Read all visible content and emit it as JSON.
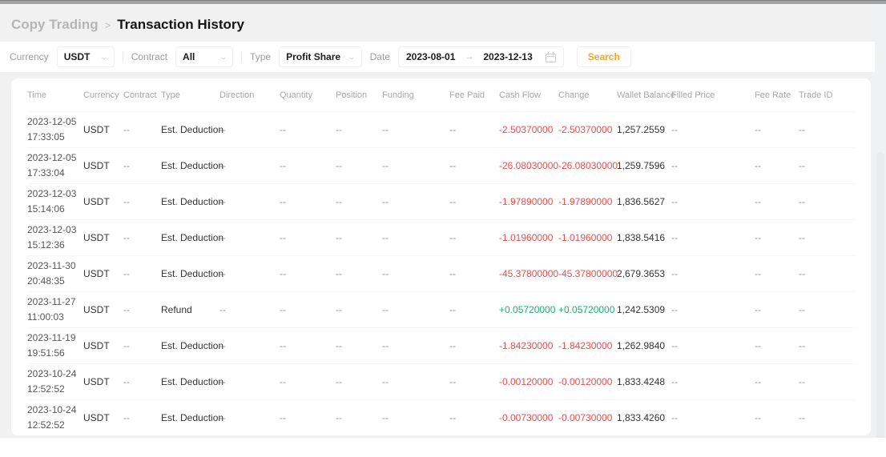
{
  "breadcrumb": {
    "parent": "Copy Trading",
    "separator": ">",
    "current": "Transaction History"
  },
  "filters": {
    "currency": {
      "label": "Currency",
      "value": "USDT"
    },
    "contract": {
      "label": "Contract",
      "value": "All"
    },
    "type": {
      "label": "Type",
      "value": "Profit Share"
    },
    "date": {
      "label": "Date",
      "start": "2023-08-01",
      "arrow": "→",
      "end": "2023-12-13"
    },
    "search_label": "Search"
  },
  "colors": {
    "negative": "#f14a4a",
    "positive": "#1ab470",
    "accent_orange": "#ffa21a"
  },
  "table": {
    "columns": [
      "Time",
      "Currency",
      "Contract",
      "Type",
      "Direction",
      "Quantity",
      "Position",
      "Funding",
      "Fee Paid",
      "Cash Flow",
      "Change",
      "Wallet Balance",
      "Filled Price",
      "Fee Rate",
      "Trade ID"
    ],
    "field_order": [
      "currency",
      "contract",
      "type",
      "direction",
      "quantity",
      "position",
      "funding",
      "fee_paid",
      "cash_flow",
      "change",
      "wallet_balance",
      "filled_price",
      "fee_rate",
      "trade_id"
    ],
    "signed_fields": [
      "cash_flow",
      "change"
    ],
    "rows": [
      {
        "date": "2023-12-05",
        "time": "17:33:05",
        "currency": "USDT",
        "contract": "--",
        "type": "Est. Deduction",
        "direction": "--",
        "quantity": "--",
        "position": "--",
        "funding": "--",
        "fee_paid": "--",
        "cash_flow": "-2.50370000",
        "change": "-2.50370000",
        "wallet_balance": "1,257.2559",
        "filled_price": "--",
        "fee_rate": "--",
        "trade_id": "--"
      },
      {
        "date": "2023-12-05",
        "time": "17:33:04",
        "currency": "USDT",
        "contract": "--",
        "type": "Est. Deduction",
        "direction": "--",
        "quantity": "--",
        "position": "--",
        "funding": "--",
        "fee_paid": "--",
        "cash_flow": "-26.08030000",
        "change": "-26.08030000",
        "wallet_balance": "1,259.7596",
        "filled_price": "--",
        "fee_rate": "--",
        "trade_id": "--"
      },
      {
        "date": "2023-12-03",
        "time": "15:14:06",
        "currency": "USDT",
        "contract": "--",
        "type": "Est. Deduction",
        "direction": "--",
        "quantity": "--",
        "position": "--",
        "funding": "--",
        "fee_paid": "--",
        "cash_flow": "-1.97890000",
        "change": "-1.97890000",
        "wallet_balance": "1,836.5627",
        "filled_price": "--",
        "fee_rate": "--",
        "trade_id": "--"
      },
      {
        "date": "2023-12-03",
        "time": "15:12:36",
        "currency": "USDT",
        "contract": "--",
        "type": "Est. Deduction",
        "direction": "--",
        "quantity": "--",
        "position": "--",
        "funding": "--",
        "fee_paid": "--",
        "cash_flow": "-1.01960000",
        "change": "-1.01960000",
        "wallet_balance": "1,838.5416",
        "filled_price": "--",
        "fee_rate": "--",
        "trade_id": "--"
      },
      {
        "date": "2023-11-30",
        "time": "20:48:35",
        "currency": "USDT",
        "contract": "--",
        "type": "Est. Deduction",
        "direction": "--",
        "quantity": "--",
        "position": "--",
        "funding": "--",
        "fee_paid": "--",
        "cash_flow": "-45.37800000",
        "change": "-45.37800000",
        "wallet_balance": "2,679.3653",
        "filled_price": "--",
        "fee_rate": "--",
        "trade_id": "--"
      },
      {
        "date": "2023-11-27",
        "time": "11:00:03",
        "currency": "USDT",
        "contract": "--",
        "type": "Refund",
        "direction": "--",
        "quantity": "--",
        "position": "--",
        "funding": "--",
        "fee_paid": "--",
        "cash_flow": "+0.05720000",
        "change": "+0.05720000",
        "wallet_balance": "1,242.5309",
        "filled_price": "--",
        "fee_rate": "--",
        "trade_id": "--"
      },
      {
        "date": "2023-11-19",
        "time": "19:51:56",
        "currency": "USDT",
        "contract": "--",
        "type": "Est. Deduction",
        "direction": "--",
        "quantity": "--",
        "position": "--",
        "funding": "--",
        "fee_paid": "--",
        "cash_flow": "-1.84230000",
        "change": "-1.84230000",
        "wallet_balance": "1,262.9840",
        "filled_price": "--",
        "fee_rate": "--",
        "trade_id": "--"
      },
      {
        "date": "2023-10-24",
        "time": "12:52:52",
        "currency": "USDT",
        "contract": "--",
        "type": "Est. Deduction",
        "direction": "--",
        "quantity": "--",
        "position": "--",
        "funding": "--",
        "fee_paid": "--",
        "cash_flow": "-0.00120000",
        "change": "-0.00120000",
        "wallet_balance": "1,833.4248",
        "filled_price": "--",
        "fee_rate": "--",
        "trade_id": "--"
      },
      {
        "date": "2023-10-24",
        "time": "12:52:52",
        "currency": "USDT",
        "contract": "--",
        "type": "Est. Deduction",
        "direction": "--",
        "quantity": "--",
        "position": "--",
        "funding": "--",
        "fee_paid": "--",
        "cash_flow": "-0.00730000",
        "change": "-0.00730000",
        "wallet_balance": "1,833.4260",
        "filled_price": "--",
        "fee_rate": "--",
        "trade_id": "--"
      }
    ]
  }
}
